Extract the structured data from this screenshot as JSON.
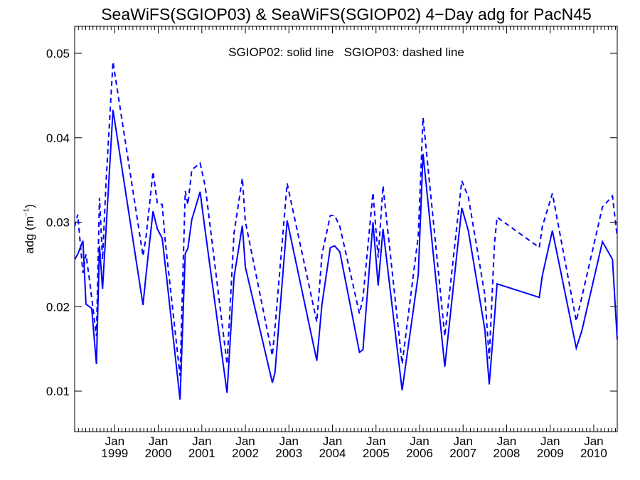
{
  "chart_data": {
    "type": "line",
    "title": "SeaWiFS(SGIOP03) & SeaWiFS(SGIOP02) 4−Day adg for PacN45",
    "annotation": "SGIOP02: solid line   SGIOP03: dashed line",
    "ylabel_main": "adg (m",
    "ylabel_sup": "−1",
    "ylabel_close": ")",
    "xlim": [
      1998.08,
      2010.54
    ],
    "ylim": [
      0.0052,
      0.0532
    ],
    "grid": false,
    "color": "#0000ff",
    "yticks": [
      {
        "value": 0.01,
        "label": "0.01"
      },
      {
        "value": 0.02,
        "label": "0.02"
      },
      {
        "value": 0.03,
        "label": "0.03"
      },
      {
        "value": 0.04,
        "label": "0.04"
      },
      {
        "value": 0.05,
        "label": "0.05"
      }
    ],
    "xticks": [
      {
        "value": 1999.0,
        "month": "Jan",
        "year": "1999"
      },
      {
        "value": 2000.0,
        "month": "Jan",
        "year": "2000"
      },
      {
        "value": 2001.0,
        "month": "Jan",
        "year": "2001"
      },
      {
        "value": 2002.0,
        "month": "Jan",
        "year": "2002"
      },
      {
        "value": 2003.0,
        "month": "Jan",
        "year": "2003"
      },
      {
        "value": 2004.0,
        "month": "Jan",
        "year": "2004"
      },
      {
        "value": 2005.0,
        "month": "Jan",
        "year": "2005"
      },
      {
        "value": 2006.0,
        "month": "Jan",
        "year": "2006"
      },
      {
        "value": 2007.0,
        "month": "Jan",
        "year": "2007"
      },
      {
        "value": 2008.0,
        "month": "Jan",
        "year": "2008"
      },
      {
        "value": 2009.0,
        "month": "Jan",
        "year": "2009"
      },
      {
        "value": 2010.0,
        "month": "Jan",
        "year": "2010"
      }
    ],
    "series": [
      {
        "name": "SGIOP02",
        "style": "solid",
        "x": [
          1998.08,
          1998.15,
          1998.27,
          1998.34,
          1998.47,
          1998.58,
          1998.65,
          1998.72,
          1998.8,
          1998.96,
          1999.65,
          1999.72,
          1999.88,
          1999.98,
          2000.09,
          2000.16,
          2000.5,
          2000.62,
          2000.68,
          2000.77,
          2000.96,
          2001.08,
          2001.58,
          2001.74,
          2001.93,
          2002.0,
          2002.62,
          2002.68,
          2002.96,
          2003.64,
          2003.76,
          2003.95,
          2004.05,
          2004.17,
          2004.62,
          2004.7,
          2004.93,
          2005.05,
          2005.16,
          2005.6,
          2005.97,
          2006.08,
          2006.58,
          2006.97,
          2007.12,
          2007.5,
          2007.6,
          2007.72,
          2007.78,
          2008.75,
          2008.82,
          2009.05,
          2009.6,
          2009.73,
          2010.2,
          2010.43,
          2010.54
        ],
        "y": [
          0.0256,
          0.0262,
          0.0278,
          0.0203,
          0.0198,
          0.0132,
          0.0272,
          0.0221,
          0.0291,
          0.0433,
          0.0202,
          0.0238,
          0.0313,
          0.0292,
          0.0281,
          0.0249,
          0.009,
          0.0263,
          0.0269,
          0.0303,
          0.0336,
          0.0289,
          0.0098,
          0.0235,
          0.0296,
          0.0247,
          0.011,
          0.0122,
          0.0302,
          0.0136,
          0.0203,
          0.027,
          0.0272,
          0.0265,
          0.0146,
          0.0149,
          0.03,
          0.0225,
          0.0292,
          0.0101,
          0.0238,
          0.0381,
          0.0129,
          0.0317,
          0.029,
          0.0173,
          0.0108,
          0.0186,
          0.0227,
          0.0211,
          0.0237,
          0.029,
          0.0151,
          0.0172,
          0.0277,
          0.0256,
          0.0161
        ]
      },
      {
        "name": "SGIOP03",
        "style": "dashed",
        "x": [
          1998.08,
          1998.15,
          1998.27,
          1998.34,
          1998.42,
          1998.58,
          1998.65,
          1998.72,
          1998.8,
          1998.96,
          1999.65,
          1999.72,
          1999.88,
          1999.98,
          2000.09,
          2000.16,
          2000.5,
          2000.62,
          2000.68,
          2000.77,
          2000.96,
          2001.08,
          2001.58,
          2001.74,
          2001.93,
          2002.0,
          2002.62,
          2002.68,
          2002.96,
          2003.64,
          2003.76,
          2003.95,
          2004.05,
          2004.17,
          2004.62,
          2004.7,
          2004.93,
          2005.05,
          2005.16,
          2005.6,
          2005.97,
          2006.08,
          2006.58,
          2006.97,
          2007.12,
          2007.5,
          2007.6,
          2007.72,
          2007.78,
          2008.75,
          2008.82,
          2009.05,
          2009.6,
          2009.73,
          2010.2,
          2010.43,
          2010.54
        ],
        "y": [
          0.0295,
          0.0309,
          0.024,
          0.0262,
          0.0232,
          0.0165,
          0.0329,
          0.0256,
          0.0347,
          0.049,
          0.026,
          0.0283,
          0.036,
          0.0322,
          0.0321,
          0.0277,
          0.0118,
          0.0337,
          0.0321,
          0.0362,
          0.037,
          0.0342,
          0.0132,
          0.0287,
          0.0352,
          0.0301,
          0.0142,
          0.0175,
          0.0346,
          0.0182,
          0.0262,
          0.0308,
          0.0308,
          0.0295,
          0.0192,
          0.021,
          0.0335,
          0.0258,
          0.0343,
          0.0132,
          0.0284,
          0.0424,
          0.0165,
          0.0349,
          0.033,
          0.0214,
          0.0138,
          0.0274,
          0.0306,
          0.027,
          0.0295,
          0.0334,
          0.0183,
          0.0212,
          0.0318,
          0.0331,
          0.0282
        ]
      }
    ]
  }
}
